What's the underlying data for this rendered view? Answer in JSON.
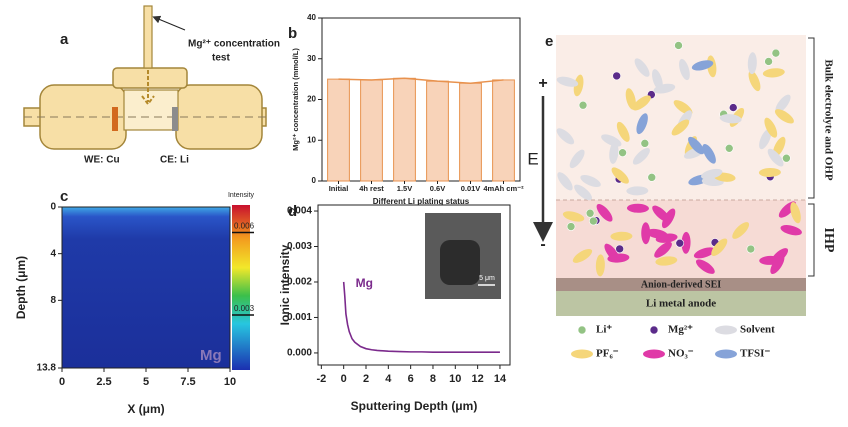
{
  "panel_a": {
    "letter": "a",
    "label_lines": [
      "Mg²⁺ concentration",
      "test"
    ],
    "we_label": "WE: Cu",
    "ce_label": "CE: Li"
  },
  "chart_data": [
    {
      "type": "bar",
      "letter": "b",
      "y_label": "Mg²⁺ concentration (mmol/L)",
      "x_label": "Different Li plating status",
      "categories": [
        "Initial",
        "4h rest",
        "1.5V",
        "0.6V",
        "0.01V",
        "4mAh cm⁻²"
      ],
      "values": [
        25,
        24.8,
        25.2,
        24.5,
        24,
        24.8
      ],
      "color": "#f8d3b9",
      "edge_color": "#e8924e",
      "connect_line": true,
      "ylim": [
        0,
        40
      ],
      "yticks": [
        0,
        10,
        20,
        30,
        40
      ]
    },
    {
      "type": "heatmap",
      "letter": "c",
      "x_label": "X (μm)",
      "y_label": "Depth (μm)",
      "annotation": "Mg",
      "colorbar_label": "Intensity",
      "xlim": [
        0,
        10
      ],
      "xticks": [
        0,
        2.5,
        5,
        7.5,
        10
      ],
      "ylim": [
        0,
        13.8
      ],
      "yticks": [
        0,
        4,
        8,
        13.8
      ],
      "y_inverted": true,
      "clim": [
        0.001,
        0.007
      ],
      "cticks": [
        0.006,
        0.003
      ]
    },
    {
      "type": "line",
      "letter": "d",
      "x_label": "Sputtering Depth (μm)",
      "y_label": "Ionic intensity",
      "inset_scale_label": "5 μm",
      "x": [
        0,
        0.1,
        0.2,
        0.35,
        0.5,
        0.75,
        1,
        1.5,
        2,
        2.5,
        3,
        4,
        5,
        6,
        7,
        8,
        9,
        10,
        11,
        12,
        13,
        14
      ],
      "series": [
        {
          "name": "Mg",
          "color": "#7b2a8c",
          "values": [
            0.002,
            0.0016,
            0.0011,
            0.0008,
            0.0006,
            0.0004,
            0.0003,
            0.00018,
            0.00012,
            9e-05,
            7e-05,
            5e-05,
            4e-05,
            3e-05,
            3e-05,
            2e-05,
            2e-05,
            2e-05,
            2e-05,
            2e-05,
            2e-05,
            2e-05
          ]
        }
      ],
      "xlim": [
        -2.3,
        14.9
      ],
      "xticks": [
        -2,
        0,
        2,
        4,
        6,
        8,
        10,
        12,
        14
      ],
      "ylim": [
        -0.00034,
        0.00417
      ],
      "yticks": [
        {
          "value": 0,
          "label": "0.000"
        },
        {
          "value": 0.001,
          "label": "0.001"
        },
        {
          "value": 0.002,
          "label": "0.002"
        },
        {
          "value": 0.003,
          "label": "0.003"
        },
        {
          "value": 0.004,
          "label": "0.004"
        }
      ]
    }
  ],
  "panel_e": {
    "letter": "e",
    "plus": "+",
    "minus": "-",
    "field_label": "E",
    "bulk_label": "Bulk electrolyte and OHP",
    "ihp_label": "IHP",
    "sei_label": "Anion-derived SEI",
    "anode_label": "Li metal anode",
    "legend": [
      {
        "label": "Li⁺",
        "color": "#93c384",
        "shape": "circle"
      },
      {
        "label": "Mg²⁺",
        "color": "#5b2b8a",
        "shape": "circle"
      },
      {
        "label": "Solvent",
        "color": "#dcdce2",
        "shape": "ellipse"
      },
      {
        "label": "PF₆⁻",
        "color": "#f5d67a",
        "shape": "ellipse"
      },
      {
        "label": "NO₃⁻",
        "color": "#e03aa8",
        "shape": "ellipse"
      },
      {
        "label": "TFSI⁻",
        "color": "#86a3d8",
        "shape": "ellipse"
      }
    ]
  }
}
